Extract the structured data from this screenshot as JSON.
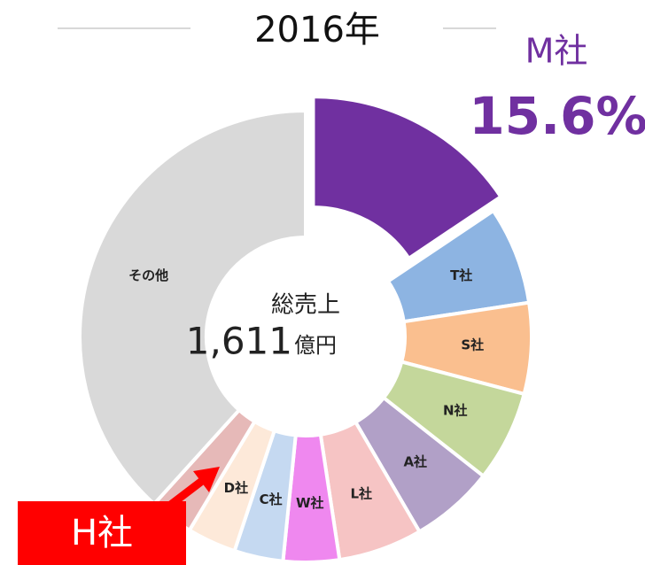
{
  "chart_data": {
    "type": "donut",
    "title": "2016年",
    "categories": [
      "M社",
      "T社",
      "S社",
      "N社",
      "A社",
      "L社",
      "W社",
      "C社",
      "D社",
      "H社",
      "その他"
    ],
    "values": [
      15.6,
      7,
      6.5,
      6.5,
      6,
      6,
      4,
      3.5,
      3.5,
      3.1,
      38.3
    ],
    "value_labels": [
      "15.6%",
      null,
      null,
      null,
      null,
      null,
      null,
      null,
      null,
      null,
      null
    ],
    "colors": [
      "#7030a0",
      "#8db4e2",
      "#fabf8f",
      "#c4d79b",
      "#b1a0c7",
      "#f6c4c4",
      "#ef88ef",
      "#c5d9f1",
      "#fde9d9",
      "#e6b9b8",
      "#d9d9d9"
    ],
    "center_label": "総売上",
    "center_value": "1,611",
    "center_unit": "億円",
    "highlight": 0,
    "annotation": 9
  }
}
